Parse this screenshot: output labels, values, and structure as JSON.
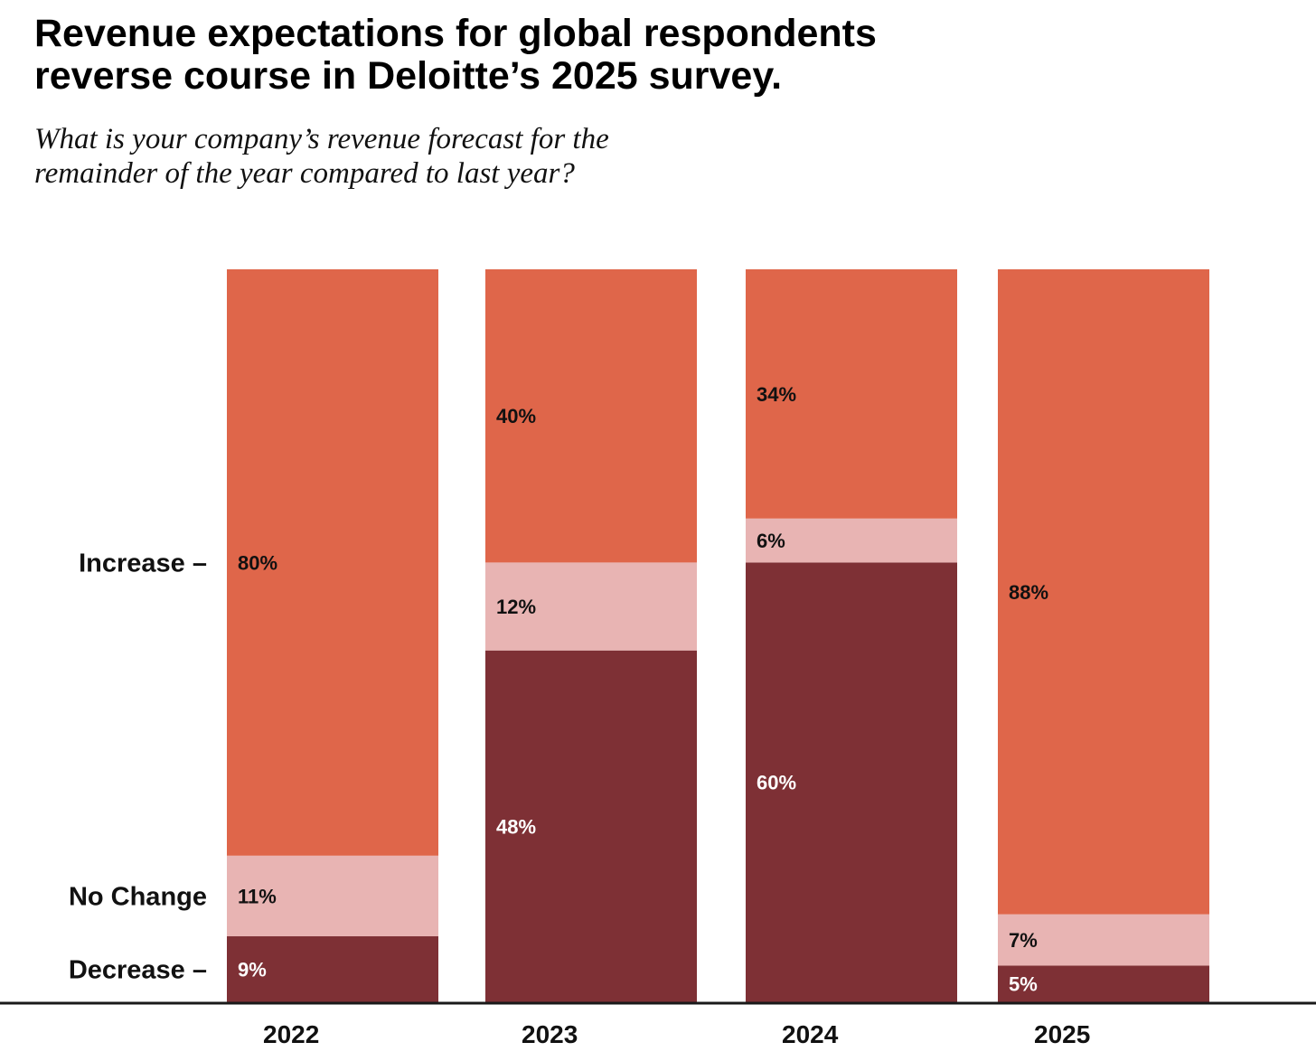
{
  "title_lines": [
    "Revenue expectations for global respondents",
    "reverse course in Deloitte’s 2025 survey."
  ],
  "subtitle_lines": [
    "What is your company’s revenue forecast for the",
    "remainder of the year compared to last year?"
  ],
  "chart_data": {
    "type": "bar",
    "stacked": true,
    "categories": [
      "2022",
      "2023",
      "2024",
      "2025"
    ],
    "series": [
      {
        "name": "Decrease",
        "legend_text": "Decrease –",
        "color": "#7e3035",
        "label_color": "#ffffff",
        "values": [
          9,
          48,
          60,
          5
        ]
      },
      {
        "name": "No Change",
        "legend_text": "No Change",
        "color": "#e8b4b3",
        "label_color": "#111111",
        "values": [
          11,
          12,
          6,
          7
        ]
      },
      {
        "name": "Increase",
        "legend_text": "Increase –",
        "color": "#df664a",
        "label_color": "#111111",
        "values": [
          80,
          40,
          34,
          88
        ]
      }
    ],
    "value_suffix": "%",
    "ylim": [
      0,
      100
    ],
    "grid": false,
    "legend_position": "left"
  }
}
